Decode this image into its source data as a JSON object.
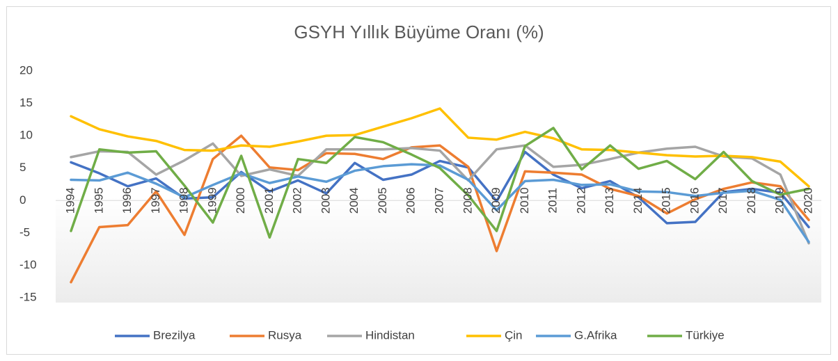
{
  "chart_data": {
    "type": "line",
    "title": "GSYH Yıllık Büyüme Oranı (%)",
    "categories": [
      "1994",
      "1995",
      "1996",
      "1997",
      "1998",
      "1999",
      "2000",
      "2001",
      "2002",
      "2003",
      "2004",
      "2005",
      "2006",
      "2007",
      "2008",
      "2009",
      "2010",
      "2011",
      "2012",
      "2013",
      "2014",
      "2015",
      "2016",
      "2017",
      "2018",
      "2019",
      "2020"
    ],
    "series": [
      {
        "name": "Brezilya",
        "color": "#4472c4",
        "values": [
          5.9,
          4.2,
          2.2,
          3.4,
          0.3,
          0.5,
          4.4,
          1.4,
          3.1,
          1.1,
          5.8,
          3.2,
          4.0,
          6.1,
          5.1,
          -0.1,
          7.5,
          4.0,
          1.9,
          3.0,
          0.5,
          -3.5,
          -3.3,
          1.3,
          1.8,
          1.2,
          -4.1
        ]
      },
      {
        "name": "Rusya",
        "color": "#ed7d31",
        "values": [
          -12.6,
          -4.1,
          -3.8,
          1.4,
          -5.3,
          6.4,
          10.0,
          5.1,
          4.7,
          7.3,
          7.2,
          6.4,
          8.2,
          8.5,
          5.2,
          -7.8,
          4.5,
          4.3,
          4.0,
          1.8,
          0.7,
          -2.0,
          0.2,
          1.8,
          2.8,
          2.2,
          -3.0
        ]
      },
      {
        "name": "Hindistan",
        "color": "#a5a5a5",
        "values": [
          6.7,
          7.6,
          7.5,
          4.0,
          6.2,
          8.8,
          3.8,
          4.8,
          3.8,
          7.9,
          7.9,
          7.9,
          8.1,
          7.7,
          3.1,
          7.9,
          8.5,
          5.2,
          5.5,
          6.4,
          7.4,
          8.0,
          8.3,
          6.8,
          6.5,
          4.0,
          -6.6
        ]
      },
      {
        "name": "Çin",
        "color": "#ffc000",
        "values": [
          13.0,
          11.0,
          9.9,
          9.2,
          7.8,
          7.7,
          8.5,
          8.3,
          9.1,
          10.0,
          10.1,
          11.4,
          12.7,
          14.2,
          9.7,
          9.4,
          10.6,
          9.6,
          7.9,
          7.8,
          7.4,
          7.0,
          6.8,
          6.9,
          6.7,
          6.0,
          2.2
        ]
      },
      {
        "name": "G.Afrika",
        "color": "#5b9bd5",
        "values": [
          3.2,
          3.1,
          4.3,
          2.6,
          0.5,
          2.4,
          4.2,
          2.7,
          3.7,
          2.9,
          4.6,
          5.3,
          5.6,
          5.4,
          3.2,
          -1.5,
          3.0,
          3.2,
          2.4,
          2.5,
          1.4,
          1.3,
          0.7,
          1.2,
          1.5,
          0.1,
          -6.4
        ]
      },
      {
        "name": "Türkiye",
        "color": "#70ad47",
        "values": [
          -4.7,
          7.9,
          7.4,
          7.6,
          2.3,
          -3.4,
          6.9,
          -5.7,
          6.4,
          5.8,
          9.8,
          9.0,
          7.1,
          5.0,
          0.8,
          -4.7,
          8.4,
          11.2,
          4.8,
          8.5,
          4.9,
          6.1,
          3.3,
          7.5,
          3.0,
          0.9,
          1.8
        ]
      }
    ],
    "ylim": [
      -15,
      20
    ],
    "yticks": [
      -15,
      -10,
      -5,
      0,
      5,
      10,
      15,
      20
    ],
    "legend": "bottom"
  }
}
